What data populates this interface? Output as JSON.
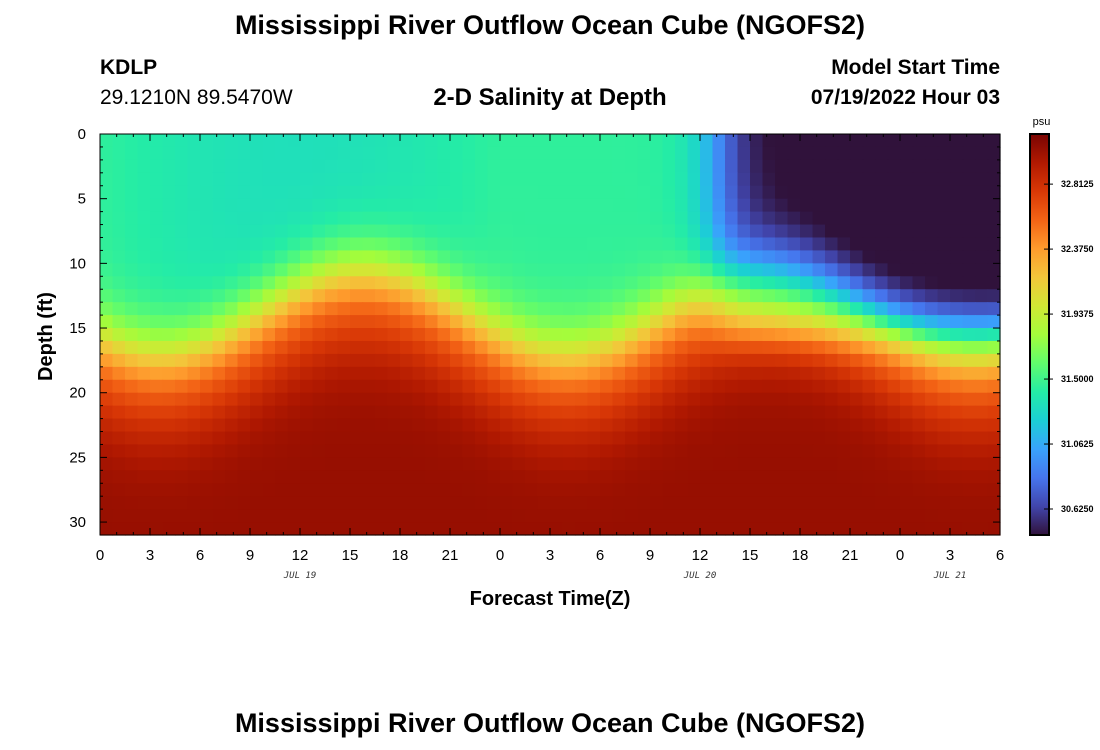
{
  "header": {
    "title": "Mississippi River Outflow Ocean Cube (NGOFS2)",
    "station": "KDLP",
    "coords": "29.1210N  89.5470W",
    "subtitle": "2-D Salinity at Depth",
    "model_start_label": "Model Start Time",
    "model_start_value": "07/19/2022 Hour 03"
  },
  "footer": {
    "title": "Mississippi River Outflow Ocean Cube (NGOFS2)"
  },
  "chart_data": {
    "type": "heatmap",
    "title": "2-D Salinity at Depth",
    "xlabel": "Forecast Time(Z)",
    "ylabel": "Depth (ft)",
    "x_range_hours": [
      0,
      54
    ],
    "y_range_ft": [
      0,
      31
    ],
    "x_tick_labels": [
      "0",
      "3",
      "6",
      "9",
      "12",
      "15",
      "18",
      "21",
      "0",
      "3",
      "6",
      "9",
      "12",
      "15",
      "18",
      "21",
      "0",
      "3",
      "6"
    ],
    "x_tick_hours": [
      0,
      3,
      6,
      9,
      12,
      15,
      18,
      21,
      24,
      27,
      30,
      33,
      36,
      39,
      42,
      45,
      48,
      51,
      54
    ],
    "y_tick_labels": [
      "0",
      "5",
      "10",
      "15",
      "20",
      "25",
      "30"
    ],
    "y_tick_values": [
      0,
      5,
      10,
      15,
      20,
      25,
      30
    ],
    "date_labels": [
      {
        "text": "JUL 19",
        "hour": 12
      },
      {
        "text": "JUL 20",
        "hour": 36
      },
      {
        "text": "JUL 21",
        "hour": 51
      }
    ],
    "colorbar": {
      "unit": "psu",
      "min": 30.45,
      "max": 33.15,
      "tick_labels": [
        "32.8125",
        "32.3750",
        "31.9375",
        "31.5000",
        "31.0625",
        "30.6250"
      ],
      "tick_values": [
        32.8125,
        32.375,
        31.9375,
        31.5,
        31.0625,
        30.625
      ]
    },
    "colormap": [
      "#30123b",
      "#4145ab",
      "#4675ed",
      "#39a2fc",
      "#1bcfd4",
      "#24eca6",
      "#61fc6c",
      "#a4fc3b",
      "#d1e834",
      "#f3c63a",
      "#fe9b2d",
      "#f36315",
      "#d93806",
      "#b11901",
      "#7a0402"
    ],
    "description_values": {
      "surface_layer_psu": 31.45,
      "bottom_layer_psu": 33.05,
      "late_surface_min_psu": 30.55
    }
  }
}
